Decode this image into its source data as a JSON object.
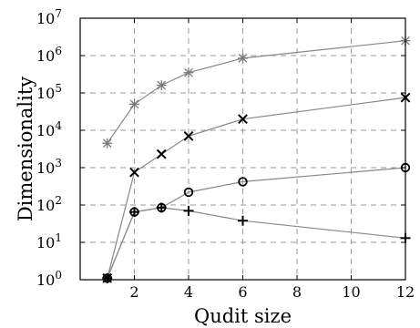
{
  "chart_data": {
    "type": "line",
    "title": "",
    "xlabel": "Qudit size",
    "ylabel": "Dimensionality",
    "xlim": [
      0,
      12
    ],
    "ylim": [
      1,
      10000000
    ],
    "yscale": "log",
    "grid": true,
    "x_ticks": [
      2,
      4,
      6,
      8,
      10,
      12
    ],
    "x_tick_labels": [
      "2",
      "4",
      "6",
      "8",
      "10",
      "12"
    ],
    "y_ticks": [
      1,
      10,
      100,
      1000,
      10000,
      100000,
      1000000,
      10000000
    ],
    "y_tick_mantissa": [
      "10",
      "10",
      "10",
      "10",
      "10",
      "10",
      "10",
      "10"
    ],
    "y_tick_exponent": [
      "0",
      "1",
      "2",
      "3",
      "4",
      "5",
      "6",
      "7"
    ],
    "line_color": "#888888",
    "marker_color": "#000000",
    "series": [
      {
        "marker": "asterisk",
        "x": [
          1,
          2,
          3,
          4,
          6,
          12
        ],
        "values": [
          4500,
          50000,
          160000,
          350000,
          850000,
          2500000
        ]
      },
      {
        "marker": "cross",
        "x": [
          1,
          2,
          3,
          4,
          6,
          12
        ],
        "values": [
          1.1,
          750,
          2300,
          7000,
          20000,
          75000
        ]
      },
      {
        "marker": "circle",
        "x": [
          1,
          2,
          3,
          4,
          6,
          12
        ],
        "values": [
          1.1,
          65,
          85,
          220,
          420,
          1000
        ]
      },
      {
        "marker": "plus",
        "x": [
          1,
          2,
          3,
          4,
          6,
          12
        ],
        "values": [
          1.1,
          65,
          85,
          70,
          38,
          13
        ]
      }
    ]
  }
}
